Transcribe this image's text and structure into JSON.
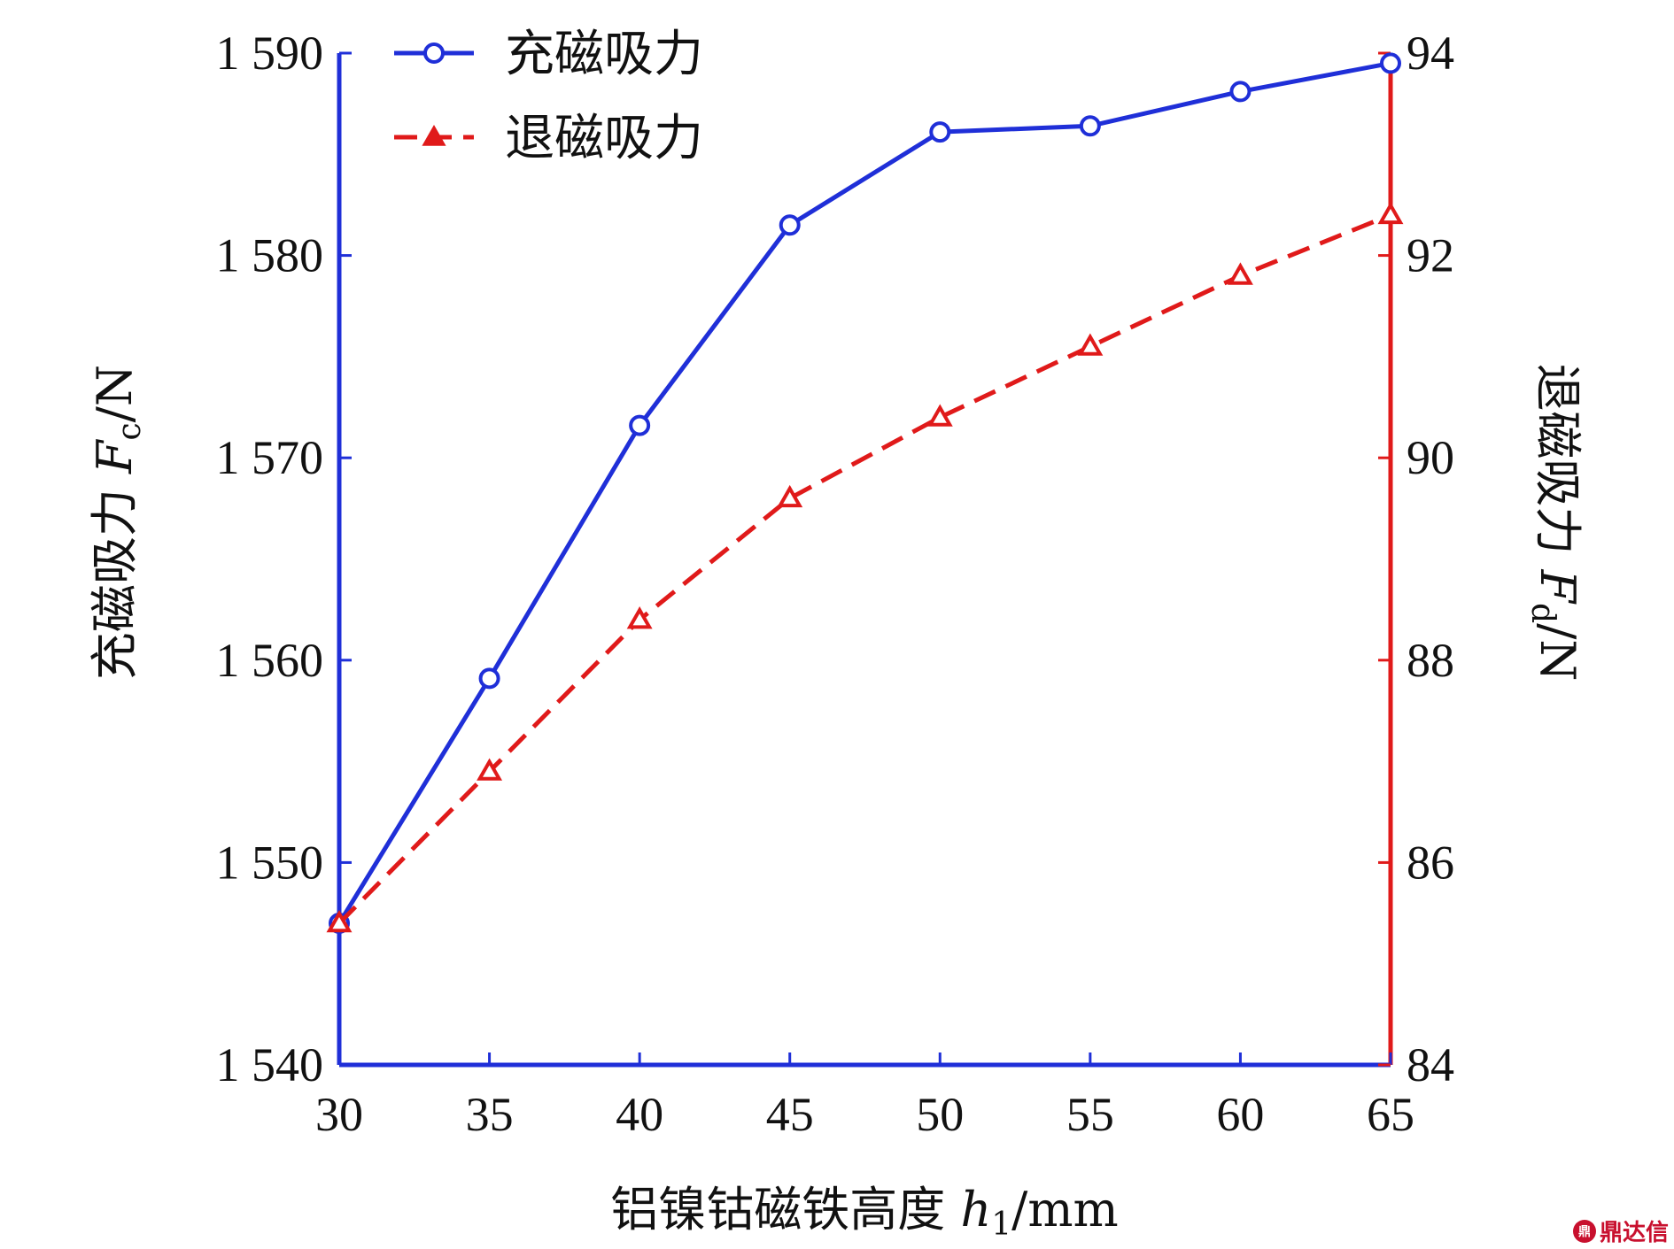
{
  "chart_data": {
    "type": "line",
    "x": [
      30,
      35,
      40,
      45,
      50,
      55,
      60,
      65
    ],
    "xlim": [
      30,
      65
    ],
    "x_ticks": [
      "30",
      "35",
      "40",
      "45",
      "50",
      "55",
      "60",
      "65"
    ],
    "xlabel": "铝镍钴磁铁高度",
    "xlabel_symbol": "h",
    "xlabel_subscript": "1",
    "xlabel_unit": "/mm",
    "left_axis": {
      "ylim": [
        1540,
        1590
      ],
      "ticks": [
        1540,
        1550,
        1560,
        1570,
        1580,
        1590
      ],
      "tick_labels": [
        "1 540",
        "1 550",
        "1 560",
        "1 570",
        "1 580",
        "1 590"
      ],
      "label": "充磁吸力",
      "label_symbol": "F",
      "label_subscript": "c",
      "label_unit": "/N",
      "color": "#1f2fd8"
    },
    "right_axis": {
      "ylim": [
        84,
        94
      ],
      "ticks": [
        84,
        86,
        88,
        90,
        92,
        94
      ],
      "tick_labels": [
        "84",
        "86",
        "88",
        "90",
        "92",
        "94"
      ],
      "label": "退磁吸力",
      "label_symbol": "F",
      "label_subscript": "d",
      "label_unit": "/N",
      "color": "#e01a1a"
    },
    "series": [
      {
        "name": "充磁吸力",
        "axis": "left",
        "values": [
          1547.0,
          1559.1,
          1571.6,
          1581.5,
          1586.1,
          1586.4,
          1588.1,
          1589.5
        ],
        "color": "#1f2fd8",
        "line_style": "solid",
        "marker": "circle"
      },
      {
        "name": "退磁吸力",
        "axis": "right",
        "values": [
          85.4,
          86.9,
          88.4,
          89.6,
          90.4,
          91.1,
          91.8,
          92.4
        ],
        "color": "#e01a1a",
        "line_style": "dashed",
        "marker": "triangle"
      }
    ],
    "legend": "top-left",
    "grid": false
  },
  "watermark": {
    "logo_text": "鼎",
    "text": "鼎达信"
  }
}
